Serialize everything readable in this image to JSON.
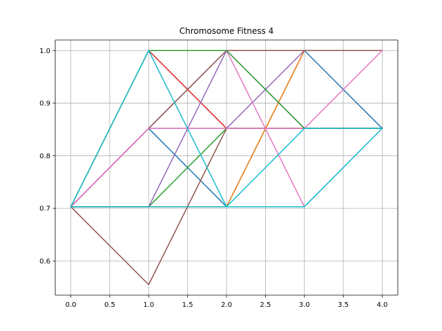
{
  "chart_data": {
    "type": "line",
    "title": "Chromosome Fitness 4",
    "xlabel": "",
    "ylabel": "",
    "x": [
      0,
      1,
      2,
      3,
      4
    ],
    "xlim": [
      -0.2,
      4.2
    ],
    "ylim": [
      0.535,
      1.02
    ],
    "x_ticks": [
      "0.0",
      "0.5",
      "1.0",
      "1.5",
      "2.0",
      "2.5",
      "3.0",
      "3.5",
      "4.0"
    ],
    "y_ticks": [
      "0.6",
      "0.7",
      "0.8",
      "0.9",
      "1.0"
    ],
    "grid": true,
    "legend": "none",
    "series": [
      {
        "color": "#1f77b4",
        "values": [
          0.703,
          0.852,
          0.703,
          1.0,
          0.852
        ]
      },
      {
        "color": "#ff7f0e",
        "values": [
          0.703,
          0.703,
          0.703,
          1.0,
          1.0
        ]
      },
      {
        "color": "#2ca02c",
        "values": [
          0.703,
          0.703,
          0.852,
          0.852,
          0.852
        ]
      },
      {
        "color": "#d62728",
        "values": [
          0.703,
          1.0,
          0.852,
          0.852,
          0.852
        ]
      },
      {
        "color": "#9467bd",
        "values": [
          0.703,
          0.852,
          0.852,
          1.0,
          1.0
        ]
      },
      {
        "color": "#8c564b",
        "values": [
          0.703,
          0.555,
          0.852,
          0.852,
          0.852
        ]
      },
      {
        "color": "#e377c2",
        "values": [
          0.703,
          0.852,
          1.0,
          0.703,
          0.852
        ]
      },
      {
        "color": "#8c564b",
        "values": [
          0.703,
          0.852,
          1.0,
          1.0,
          1.0
        ]
      },
      {
        "color": "#9467bd",
        "values": [
          0.703,
          0.703,
          1.0,
          0.852,
          0.852
        ]
      },
      {
        "color": "#2ca02c",
        "values": [
          0.703,
          1.0,
          1.0,
          0.852,
          0.852
        ]
      },
      {
        "color": "#e377c2",
        "values": [
          0.703,
          0.852,
          0.852,
          0.852,
          1.0
        ]
      },
      {
        "color": "#17becf",
        "values": [
          0.703,
          1.0,
          0.703,
          0.703,
          0.852
        ]
      },
      {
        "color": "#17becf",
        "values": [
          0.703,
          0.703,
          0.703,
          0.852,
          0.852
        ]
      }
    ]
  }
}
